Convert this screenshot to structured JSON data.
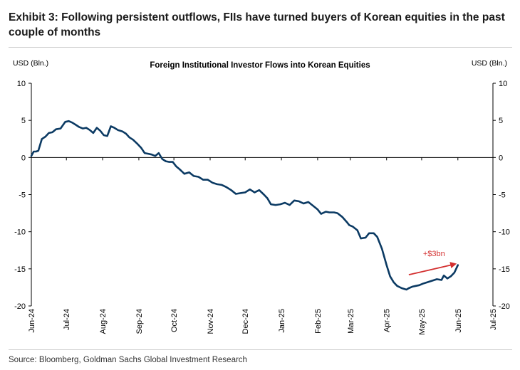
{
  "header": {
    "exhibit_title": "Exhibit 3: Following persistent outflows, FIIs have turned buyers of Korean equities in the past couple of months"
  },
  "footer": {
    "source": "Source: Bloomberg, Goldman Sachs Global Investment Research"
  },
  "colors": {
    "line": "#0b3a63",
    "annotation": "#d32f2f",
    "axis": "#000000"
  },
  "chart_data": {
    "type": "line",
    "title": "Foreign Institutional Investor Flows into Korean Equities",
    "ylabel_left": "USD (Bln.)",
    "ylabel_right": "USD (Bln.)",
    "ylim": [
      -20,
      10
    ],
    "yticks": [
      10,
      5,
      0,
      -5,
      -10,
      -15,
      -20
    ],
    "xlim": [
      "2024-06-01",
      "2025-07-01"
    ],
    "xticks": [
      "Jun-24",
      "Jul-24",
      "Aug-24",
      "Sep-24",
      "Oct-24",
      "Nov-24",
      "Dec-24",
      "Jan-25",
      "Feb-25",
      "Mar-25",
      "Apr-25",
      "May-25",
      "Jun-25",
      "Jul-25"
    ],
    "grid": false,
    "annotation": {
      "text": "+$3bn",
      "arrow_from": [
        "2025-04-20",
        -15.8
      ],
      "arrow_to": [
        "2025-05-31",
        -14.3
      ]
    },
    "series": [
      {
        "points": [
          [
            "2024-06-01",
            0.2
          ],
          [
            "2024-06-03",
            0.8
          ],
          [
            "2024-06-05",
            0.8
          ],
          [
            "2024-06-07",
            0.9
          ],
          [
            "2024-06-10",
            2.5
          ],
          [
            "2024-06-13",
            2.8
          ],
          [
            "2024-06-16",
            3.3
          ],
          [
            "2024-06-19",
            3.4
          ],
          [
            "2024-06-22",
            3.8
          ],
          [
            "2024-06-26",
            3.9
          ],
          [
            "2024-06-30",
            4.8
          ],
          [
            "2024-07-03",
            4.9
          ],
          [
            "2024-07-06",
            4.7
          ],
          [
            "2024-07-09",
            4.4
          ],
          [
            "2024-07-12",
            4.1
          ],
          [
            "2024-07-15",
            3.9
          ],
          [
            "2024-07-18",
            4.0
          ],
          [
            "2024-07-21",
            3.7
          ],
          [
            "2024-07-24",
            3.3
          ],
          [
            "2024-07-27",
            4.0
          ],
          [
            "2024-07-30",
            3.6
          ],
          [
            "2024-08-02",
            3.0
          ],
          [
            "2024-08-05",
            2.9
          ],
          [
            "2024-08-08",
            4.2
          ],
          [
            "2024-08-11",
            4.0
          ],
          [
            "2024-08-14",
            3.7
          ],
          [
            "2024-08-18",
            3.5
          ],
          [
            "2024-08-21",
            3.2
          ],
          [
            "2024-08-24",
            2.7
          ],
          [
            "2024-08-27",
            2.4
          ],
          [
            "2024-08-31",
            1.8
          ],
          [
            "2024-09-03",
            1.3
          ],
          [
            "2024-09-06",
            0.6
          ],
          [
            "2024-09-09",
            0.5
          ],
          [
            "2024-09-12",
            0.4
          ],
          [
            "2024-09-15",
            0.2
          ],
          [
            "2024-09-18",
            0.6
          ],
          [
            "2024-09-21",
            -0.2
          ],
          [
            "2024-09-24",
            -0.5
          ],
          [
            "2024-09-27",
            -0.6
          ],
          [
            "2024-09-30",
            -0.6
          ],
          [
            "2024-10-03",
            -1.2
          ],
          [
            "2024-10-06",
            -1.6
          ],
          [
            "2024-10-10",
            -2.2
          ],
          [
            "2024-10-14",
            -2.0
          ],
          [
            "2024-10-18",
            -2.5
          ],
          [
            "2024-10-22",
            -2.6
          ],
          [
            "2024-10-26",
            -3.0
          ],
          [
            "2024-10-30",
            -3.0
          ],
          [
            "2024-11-03",
            -3.4
          ],
          [
            "2024-11-07",
            -3.6
          ],
          [
            "2024-11-11",
            -3.7
          ],
          [
            "2024-11-15",
            -4.0
          ],
          [
            "2024-11-19",
            -4.4
          ],
          [
            "2024-11-23",
            -4.9
          ],
          [
            "2024-11-27",
            -4.8
          ],
          [
            "2024-12-01",
            -4.7
          ],
          [
            "2024-12-05",
            -4.3
          ],
          [
            "2024-12-09",
            -4.7
          ],
          [
            "2024-12-13",
            -4.4
          ],
          [
            "2024-12-17",
            -5.0
          ],
          [
            "2024-12-20",
            -5.5
          ],
          [
            "2024-12-23",
            -6.3
          ],
          [
            "2024-12-27",
            -6.4
          ],
          [
            "2024-12-31",
            -6.3
          ],
          [
            "2025-01-04",
            -6.1
          ],
          [
            "2025-01-08",
            -6.4
          ],
          [
            "2025-01-12",
            -5.8
          ],
          [
            "2025-01-16",
            -5.9
          ],
          [
            "2025-01-20",
            -6.2
          ],
          [
            "2025-01-24",
            -6.0
          ],
          [
            "2025-01-28",
            -6.5
          ],
          [
            "2025-02-01",
            -7.0
          ],
          [
            "2025-02-04",
            -7.6
          ],
          [
            "2025-02-08",
            -7.3
          ],
          [
            "2025-02-11",
            -7.4
          ],
          [
            "2025-02-15",
            -7.4
          ],
          [
            "2025-02-18",
            -7.5
          ],
          [
            "2025-02-22",
            -8.0
          ],
          [
            "2025-02-26",
            -8.7
          ],
          [
            "2025-02-28",
            -9.1
          ],
          [
            "2025-03-03",
            -9.3
          ],
          [
            "2025-03-07",
            -9.8
          ],
          [
            "2025-03-10",
            -10.9
          ],
          [
            "2025-03-14",
            -10.8
          ],
          [
            "2025-03-17",
            -10.2
          ],
          [
            "2025-03-21",
            -10.2
          ],
          [
            "2025-03-24",
            -10.7
          ],
          [
            "2025-03-28",
            -12.3
          ],
          [
            "2025-04-01",
            -14.5
          ],
          [
            "2025-04-04",
            -16.0
          ],
          [
            "2025-04-07",
            -16.8
          ],
          [
            "2025-04-10",
            -17.3
          ],
          [
            "2025-04-14",
            -17.6
          ],
          [
            "2025-04-18",
            -17.8
          ],
          [
            "2025-04-20",
            -17.6
          ],
          [
            "2025-04-23",
            -17.4
          ],
          [
            "2025-04-26",
            -17.3
          ],
          [
            "2025-04-29",
            -17.2
          ],
          [
            "2025-05-02",
            -17.0
          ],
          [
            "2025-05-06",
            -16.8
          ],
          [
            "2025-05-10",
            -16.6
          ],
          [
            "2025-05-14",
            -16.4
          ],
          [
            "2025-05-18",
            -16.5
          ],
          [
            "2025-05-20",
            -15.9
          ],
          [
            "2025-05-23",
            -16.3
          ],
          [
            "2025-05-26",
            -16.0
          ],
          [
            "2025-05-29",
            -15.5
          ],
          [
            "2025-06-01",
            -14.5
          ]
        ]
      }
    ]
  }
}
